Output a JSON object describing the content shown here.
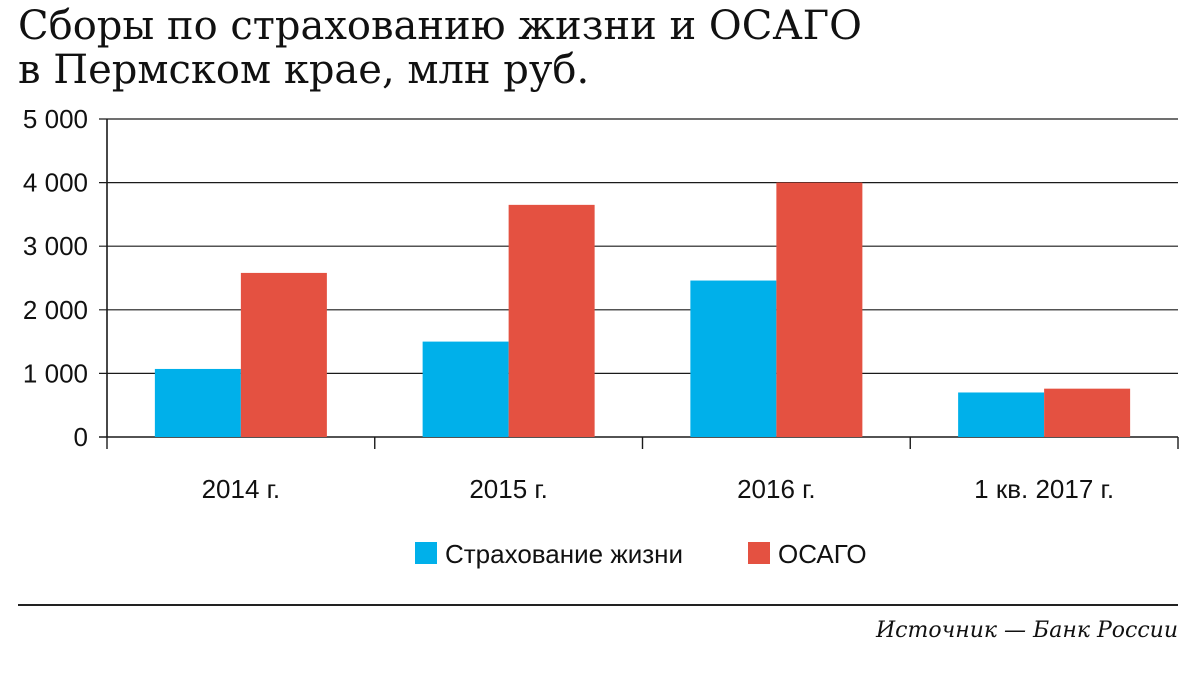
{
  "title": {
    "line1": "Сборы по страхованию жизни и ОСАГО",
    "line2": "в Пермском крае, млн руб."
  },
  "source": "Источник — Банк России",
  "colors": {
    "life": "#00b0ea",
    "osago": "#e45141",
    "grid": "#1a1a1a"
  },
  "chart_data": {
    "type": "bar",
    "title": "Сборы по страхованию жизни и ОСАГО в Пермском крае, млн руб.",
    "xlabel": "",
    "ylabel": "",
    "categories": [
      "2014 г.",
      "2015 г.",
      "2016 г.",
      "1 кв. 2017 г."
    ],
    "series": [
      {
        "name": "Страхование жизни",
        "values": [
          1070,
          1500,
          2460,
          700
        ]
      },
      {
        "name": "ОСАГО",
        "values": [
          2580,
          3650,
          4000,
          760
        ]
      }
    ],
    "ylim": [
      0,
      5000
    ],
    "yticks": [
      0,
      1000,
      2000,
      3000,
      4000,
      5000
    ],
    "ytick_labels": [
      "0",
      "1 000",
      "2 000",
      "3 000",
      "4 000",
      "5 000"
    ],
    "grid": true,
    "legend": "bottom"
  }
}
